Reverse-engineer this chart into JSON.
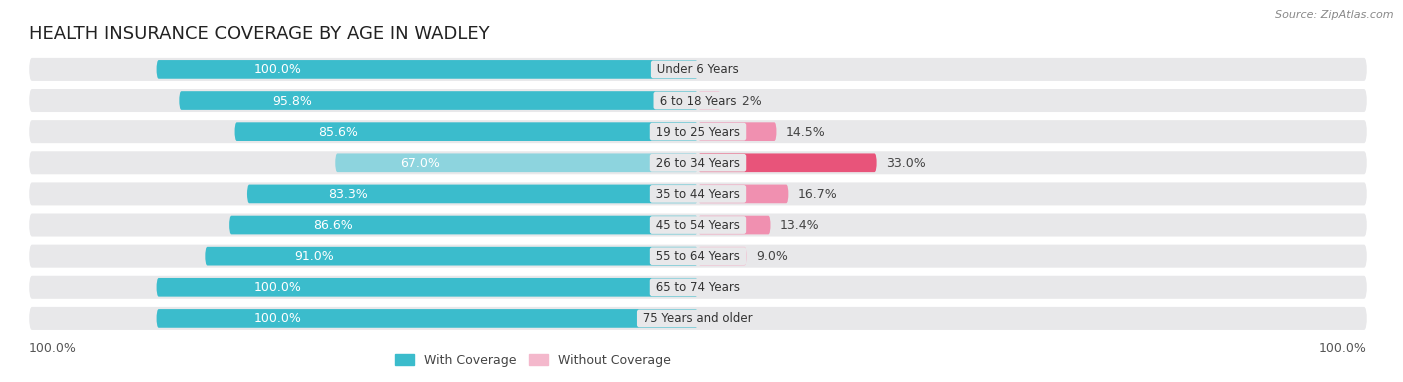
{
  "title": "HEALTH INSURANCE COVERAGE BY AGE IN WADLEY",
  "source": "Source: ZipAtlas.com",
  "categories": [
    "Under 6 Years",
    "6 to 18 Years",
    "19 to 25 Years",
    "26 to 34 Years",
    "35 to 44 Years",
    "45 to 54 Years",
    "55 to 64 Years",
    "65 to 74 Years",
    "75 Years and older"
  ],
  "with_coverage": [
    100.0,
    95.8,
    85.6,
    67.0,
    83.3,
    86.6,
    91.0,
    100.0,
    100.0
  ],
  "without_coverage": [
    0.0,
    4.2,
    14.5,
    33.0,
    16.7,
    13.4,
    9.0,
    0.0,
    0.0
  ],
  "color_with_dark": "#3bbccc",
  "color_with_light": "#8dd4de",
  "color_without_dark": "#e8547a",
  "color_without_mid": "#f090b0",
  "color_without_light": "#f4b8cc",
  "color_without_lightest": "#f8d0e0",
  "bar_bg_color": "#e8e8ea",
  "bg_color": "#ffffff",
  "title_fontsize": 13,
  "label_fontsize": 9.0,
  "legend_with": "With Coverage",
  "legend_without": "Without Coverage"
}
